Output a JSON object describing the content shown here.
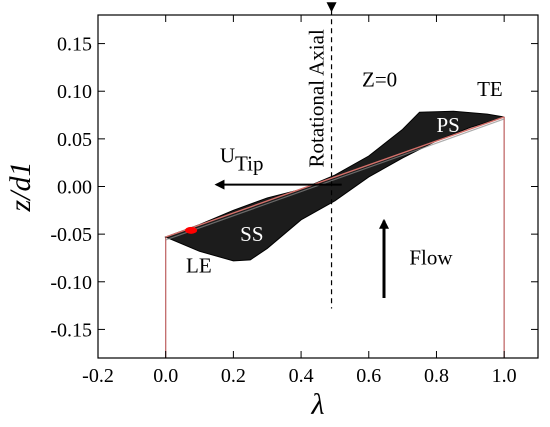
{
  "chart_data": {
    "type": "diagram-plot",
    "xlabel": "λ",
    "ylabel": "z/d1",
    "xlim": [
      -0.2,
      1.1
    ],
    "ylim": [
      -0.18,
      0.18
    ],
    "x_ticks": [
      -0.2,
      0.0,
      0.2,
      0.4,
      0.6,
      0.8,
      1.0
    ],
    "x_tick_labels": [
      "-0.2",
      "0.0",
      "0.2",
      "0.4",
      "0.6",
      "0.8",
      "1.0"
    ],
    "y_ticks": [
      0.15,
      0.1,
      0.05,
      0.0,
      -0.05,
      -0.1,
      -0.15
    ],
    "y_tick_labels": [
      "0.15",
      "0.10",
      "0.05",
      "0.00",
      "-0.05",
      "-0.10",
      "-0.15"
    ],
    "grid": false,
    "blade": {
      "upper": [
        [
          0.0,
          -0.053
        ],
        [
          0.1,
          -0.04
        ],
        [
          0.2,
          -0.025
        ],
        [
          0.3,
          -0.012
        ],
        [
          0.4,
          -0.003
        ],
        [
          0.5,
          0.012
        ],
        [
          0.6,
          0.032
        ],
        [
          0.7,
          0.06
        ],
        [
          0.75,
          0.078
        ],
        [
          0.85,
          0.079
        ],
        [
          0.95,
          0.076
        ],
        [
          1.0,
          0.073
        ]
      ],
      "lower": [
        [
          0.0,
          -0.053
        ],
        [
          0.1,
          -0.068
        ],
        [
          0.2,
          -0.078
        ],
        [
          0.25,
          -0.077
        ],
        [
          0.3,
          -0.065
        ],
        [
          0.4,
          -0.035
        ],
        [
          0.5,
          -0.015
        ],
        [
          0.6,
          0.01
        ],
        [
          0.7,
          0.03
        ],
        [
          0.8,
          0.048
        ],
        [
          0.9,
          0.062
        ],
        [
          1.0,
          0.073
        ]
      ],
      "chord": [
        [
          0.0,
          -0.053
        ],
        [
          1.0,
          0.073
        ]
      ],
      "fill": "#1c1c1c",
      "chord_color": "#d4706a"
    },
    "leading_edge_marker": {
      "x": 0.075,
      "y": -0.046,
      "color": "#ff0000"
    },
    "vertical_lines": [
      0.0,
      1.0
    ],
    "vertical_line_color": "#c26a6a",
    "rotational_axis": {
      "x": 0.49,
      "y_top": 0.185,
      "y_bottom": -0.128,
      "label": "Rotational Axial"
    },
    "z0_label": {
      "text": "Z=0",
      "x": 0.58,
      "y": 0.105
    },
    "annotations": [
      {
        "id": "te",
        "text": "TE",
        "x": 0.92,
        "y": 0.095,
        "color": "#000000"
      },
      {
        "id": "ps",
        "text": "PS",
        "x": 0.8,
        "y": 0.057,
        "color": "#ffffff"
      },
      {
        "id": "ss",
        "text": "SS",
        "x": 0.22,
        "y": -0.057,
        "color": "#ffffff"
      },
      {
        "id": "le",
        "text": "LE",
        "x": 0.06,
        "y": -0.09,
        "color": "#000000"
      },
      {
        "id": "flow",
        "text": "Flow",
        "x": 0.72,
        "y": -0.082,
        "color": "#000000"
      }
    ],
    "utip": {
      "base": "U",
      "sub": "Tip",
      "label_x": 0.16,
      "label_y": 0.025,
      "arrow_from": 0.52,
      "arrow_to": 0.15,
      "arrow_y": 0.002
    },
    "flow_arrow": {
      "x": 0.645,
      "y_from": -0.117,
      "y_to": -0.036
    }
  }
}
